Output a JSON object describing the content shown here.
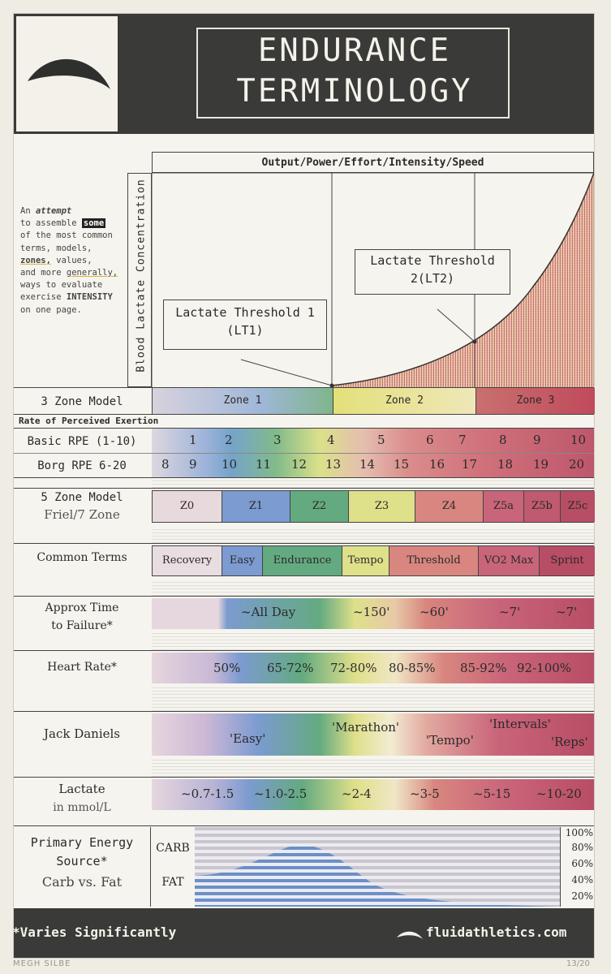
{
  "header": {
    "title_line1": "ENDURANCE",
    "title_line2": "TERMINOLOGY"
  },
  "intro": {
    "line1": "An",
    "line1_em": "attempt",
    "line2": "to assemble",
    "line2_highlight": "some",
    "line3": "of the most common",
    "line4": "terms, models,",
    "line5_a": "zones,",
    "line5_b": " values,",
    "line6_a": "and more ",
    "line6_b": "generally,",
    "line7": "ways to evaluate",
    "line8_a": "exercise ",
    "line8_b": "INTENSITY",
    "line9": "on one page."
  },
  "graph": {
    "x_label": "Output/Power/Effort/Intensity/Speed",
    "y_label": "Blood Lactate Concentration",
    "lt1_line1": "Lactate Threshold 1",
    "lt1_line2": "(LT1)",
    "lt2_line1": "Lactate Threshold",
    "lt2_line2": "2(LT2)"
  },
  "three_zone": {
    "label": "3 Zone Model",
    "zones": [
      "Zone 1",
      "Zone 2",
      "Zone 3"
    ]
  },
  "rpe_header": "Rate of Perceived Exertion",
  "basic_rpe": {
    "label": "Basic RPE (1-10)",
    "values": [
      "1",
      "2",
      "3",
      "4",
      "5",
      "6",
      "7",
      "8",
      "9",
      "10"
    ]
  },
  "borg_rpe": {
    "label": "Borg RPE 6-20",
    "values": [
      "8",
      "9",
      "10",
      "11",
      "12",
      "13",
      "14",
      "15",
      "16",
      "17",
      "18",
      "19",
      "20"
    ]
  },
  "five_zone": {
    "label_line1": "5 Zone Model",
    "label_line2": "Friel/7 Zone",
    "zones": [
      "Z0",
      "Z1",
      "Z2",
      "Z3",
      "Z4",
      "Z5a",
      "Z5b",
      "Z5c"
    ]
  },
  "common_terms": {
    "label": "Common Terms",
    "terms": [
      "Recovery",
      "Easy",
      "Endurance",
      "Tempo",
      "Threshold",
      "VO2 Max",
      "Sprint"
    ]
  },
  "time_to_failure": {
    "label_line1": "Approx Time",
    "label_line2": "to Failure*",
    "values": [
      "~All Day",
      "~150'",
      "~60'",
      "~7'",
      "~7'"
    ]
  },
  "heart_rate": {
    "label": "Heart Rate*",
    "values": [
      "50%",
      "65-72%",
      "72-80%",
      "80-85%",
      "85-92%",
      "92-100%"
    ]
  },
  "jack_daniels": {
    "label": "Jack Daniels",
    "values": [
      "'Easy'",
      "'Marathon'",
      "'Tempo'",
      "'Intervals'",
      "'Reps'"
    ]
  },
  "lactate": {
    "label_line1": "Lactate",
    "label_line2": "in mmol/L",
    "values": [
      "~0.7-1.5",
      "~1.0-2.5",
      "~2-4",
      "~3-5",
      "~5-15",
      "~10-20"
    ]
  },
  "energy": {
    "label_line1": "Primary Energy",
    "label_line2": "Source*",
    "label_line3": "Carb vs. Fat",
    "carb": "CARB",
    "fat": "FAT",
    "percents": [
      "100%",
      "80%",
      "60%",
      "40%",
      "20%"
    ]
  },
  "footer": {
    "note": "*Varies Significantly",
    "site": "fluidathletics.com"
  },
  "signature": "MEGH SILBE",
  "edition": "13/20",
  "colors": {
    "dark": "#3a3a38",
    "blue": "#6b8fc2",
    "green": "#5ea36f",
    "yellow": "#e9e27a",
    "red": "#c55a5a",
    "crimson": "#b0394f"
  }
}
